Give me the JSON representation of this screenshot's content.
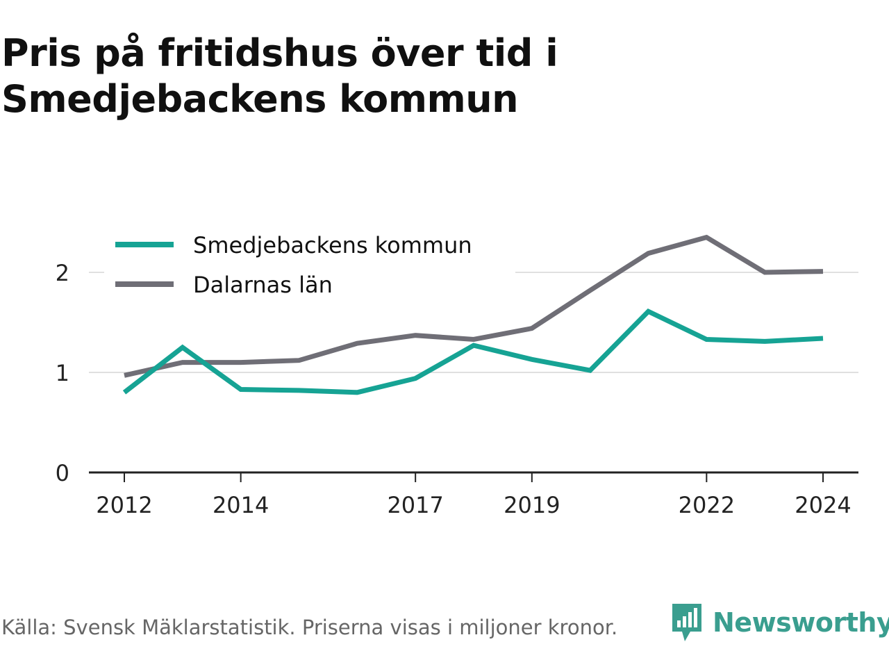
{
  "title": "Pris på fritidshus över tid i Smedjebackens kommun",
  "footer": {
    "source": "Källa: Svensk Mäklarstatistik. Priserna visas i miljoner kronor.",
    "brand": "Newsworthy"
  },
  "colors": {
    "smedjebacken": "#16a394",
    "dalarna": "#6f6e76",
    "grid": "#e0e0e0",
    "axis": "#222222",
    "brand": "#3a9e8f"
  },
  "chart_data": {
    "type": "line",
    "x": [
      2012,
      2013,
      2014,
      2015,
      2016,
      2017,
      2018,
      2019,
      2020,
      2021,
      2022,
      2023,
      2024
    ],
    "x_tick_values": [
      2012,
      2014,
      2017,
      2019,
      2022,
      2024
    ],
    "x_tick_labels": [
      "2012",
      "2014",
      "2017",
      "2019",
      "2022",
      "2024"
    ],
    "y_tick_values": [
      0,
      1,
      2
    ],
    "y_tick_labels": [
      "0",
      "1",
      "2"
    ],
    "ylim": [
      0,
      2.6
    ],
    "grid": true,
    "legend_position": "top-left",
    "series": [
      {
        "name": "Smedjebackens kommun",
        "color": "#16a394",
        "values": [
          0.8,
          1.25,
          0.83,
          0.82,
          0.8,
          0.94,
          1.27,
          1.13,
          1.02,
          1.61,
          1.33,
          1.31,
          1.34
        ]
      },
      {
        "name": "Dalarnas län",
        "color": "#6f6e76",
        "values": [
          0.97,
          1.1,
          1.1,
          1.12,
          1.29,
          1.37,
          1.33,
          1.44,
          1.82,
          2.19,
          2.35,
          2.0,
          2.01
        ]
      }
    ]
  }
}
